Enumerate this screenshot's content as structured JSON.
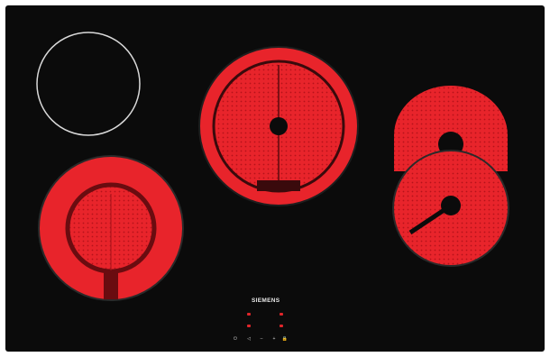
{
  "hob": {
    "brand": "SIEMENS",
    "top_marking": "",
    "certificate": ""
  },
  "zones": [
    {
      "id": "front-left",
      "state": "off"
    },
    {
      "id": "rear-left",
      "state": "on-dual"
    },
    {
      "id": "center",
      "state": "on-dual"
    },
    {
      "id": "right-upper",
      "state": "on"
    },
    {
      "id": "right-lower",
      "state": "on"
    }
  ],
  "controls": {
    "symbols": [
      "⏻",
      "◁",
      "–",
      "+",
      "🔒"
    ]
  },
  "colors": {
    "glass": "#0b0b0b",
    "heat": "#e8242b",
    "heat_dark": "#b5121a",
    "ring_off": "#d9d9d9"
  }
}
